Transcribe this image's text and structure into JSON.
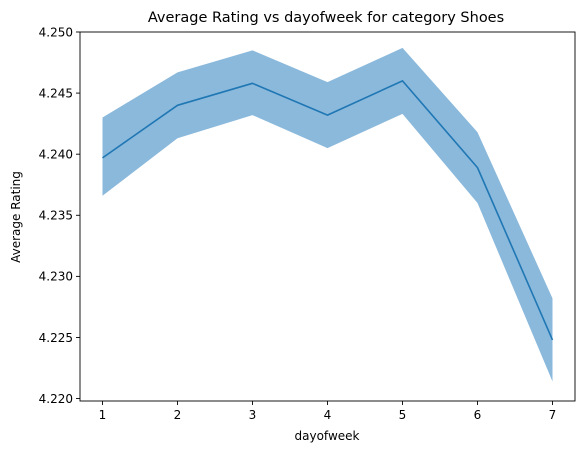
{
  "chart_data": {
    "type": "line",
    "title": "Average Rating vs dayofweek for category Shoes",
    "xlabel": "dayofweek",
    "ylabel": "Average Rating",
    "x": [
      1,
      2,
      3,
      4,
      5,
      6,
      7
    ],
    "xticks": [
      "1",
      "2",
      "3",
      "4",
      "5",
      "6",
      "7"
    ],
    "yticks": [
      "4.220",
      "4.225",
      "4.230",
      "4.235",
      "4.240",
      "4.245",
      "4.250"
    ],
    "xlim": [
      0.7,
      7.3
    ],
    "ylim": [
      4.2198,
      4.25
    ],
    "grid": false,
    "series": [
      {
        "values": [
          4.2397,
          4.244,
          4.2458,
          4.2432,
          4.246,
          4.2389,
          4.2248
        ],
        "lower": [
          4.2366,
          4.2413,
          4.2432,
          4.2405,
          4.2433,
          4.236,
          4.2214
        ],
        "upper": [
          4.243,
          4.2467,
          4.2485,
          4.2459,
          4.2487,
          4.2418,
          4.2282
        ],
        "color": "#1f77b4",
        "band_color": "#8bb9dc"
      }
    ]
  }
}
